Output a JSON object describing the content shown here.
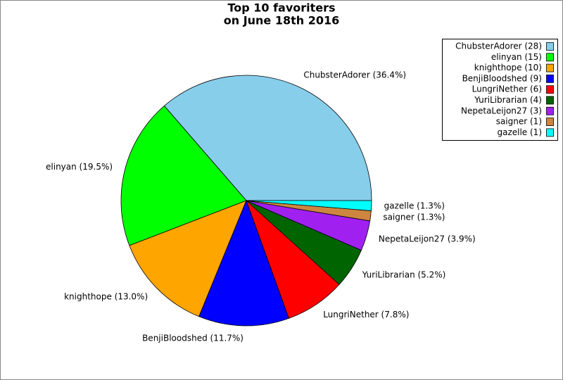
{
  "chart_data": {
    "type": "pie",
    "title": "Top 10 favoriters",
    "subtitle": "on June 18th 2016",
    "values": [
      28,
      15,
      10,
      9,
      6,
      4,
      3,
      1,
      1
    ],
    "legend_labels": [
      "ChubsterAdorer (28)",
      "elinyan (15)",
      "knighthope (10)",
      "BenjiBloodshed (9)",
      "LungriNether (6)",
      "YuriLibrarian (4)",
      "NepetaLeijon27 (3)",
      "saigner (1)",
      "gazelle (1)"
    ],
    "slice_labels": [
      "ChubsterAdorer (36.4%)",
      "elinyan (19.5%)",
      "knighthope (13.0%)",
      "BenjiBloodshed (11.7%)",
      "LungriNether (7.8%)",
      "YuriLibrarian (5.2%)",
      "NepetaLeijon27 (3.9%)",
      "saigner (1.3%)",
      "gazelle (1.3%)"
    ],
    "colors": [
      "#87ceeb",
      "#00ff00",
      "#ffa500",
      "#0000ff",
      "#ff0000",
      "#006400",
      "#a020f0",
      "#cd853f",
      "#00ffff"
    ],
    "legend": "upper right"
  }
}
